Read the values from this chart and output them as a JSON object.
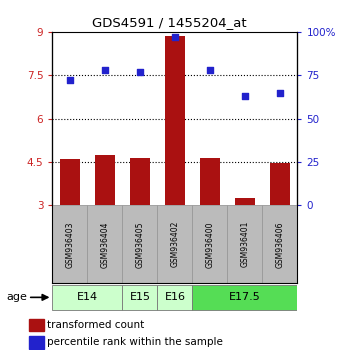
{
  "title": "GDS4591 / 1455204_at",
  "samples": [
    "GSM936403",
    "GSM936404",
    "GSM936405",
    "GSM936402",
    "GSM936400",
    "GSM936401",
    "GSM936406"
  ],
  "transformed_count": [
    4.6,
    4.75,
    4.65,
    8.85,
    4.65,
    3.25,
    4.45
  ],
  "percentile_rank": [
    72,
    78,
    77,
    97,
    78,
    63,
    65
  ],
  "age_groups": [
    {
      "label": "E14",
      "spans": [
        0,
        1
      ],
      "color": "#ccffcc"
    },
    {
      "label": "E15",
      "spans": [
        2,
        2
      ],
      "color": "#ccffcc"
    },
    {
      "label": "E16",
      "spans": [
        3,
        3
      ],
      "color": "#ccffcc"
    },
    {
      "label": "E17.5",
      "spans": [
        4,
        6
      ],
      "color": "#55dd55"
    }
  ],
  "ylim_left": [
    3,
    9
  ],
  "ylim_right": [
    0,
    100
  ],
  "yticks_left": [
    3,
    4.5,
    6,
    7.5,
    9
  ],
  "yticks_right": [
    0,
    25,
    50,
    75,
    100
  ],
  "ytick_labels_left": [
    "3",
    "4.5",
    "6",
    "7.5",
    "9"
  ],
  "ytick_labels_right": [
    "0",
    "25",
    "50",
    "75",
    "100%"
  ],
  "hlines": [
    4.5,
    6,
    7.5
  ],
  "bar_color": "#aa1111",
  "dot_color": "#2222cc",
  "bar_width": 0.55,
  "background_sample": "#bbbbbb",
  "age_label": "age"
}
